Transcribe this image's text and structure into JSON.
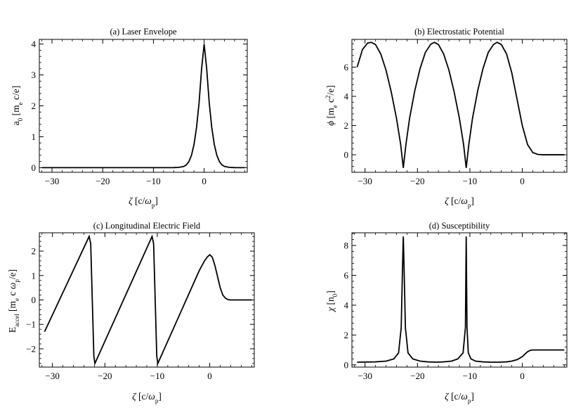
{
  "chart_data": [
    {
      "id": "a",
      "type": "line",
      "title": "(a) Laser Envelope",
      "xlabel": "ζ [c/ω_p]",
      "ylabel": "a_0 [m_e c/e]",
      "xlim": [
        -32.5,
        8.5
      ],
      "ylim": [
        -0.15,
        4.15
      ],
      "xticks": [
        -30,
        -20,
        -10,
        0
      ],
      "xtick_labels": [
        "−30",
        "−20",
        "−10",
        "0"
      ],
      "yticks": [
        0,
        1,
        2,
        3,
        4
      ],
      "ytick_labels": [
        "0",
        "1",
        "2",
        "3",
        "4"
      ],
      "grid": false,
      "series": [
        {
          "x": [
            -32,
            -10,
            -6,
            -5,
            -4,
            -3.5,
            -3,
            -2.5,
            -2,
            -1.5,
            -1,
            -0.5,
            0,
            0.5,
            1,
            1.5,
            2,
            2.5,
            3,
            3.5,
            4,
            5,
            6,
            8
          ],
          "y": [
            0,
            0,
            0.002,
            0.01,
            0.04,
            0.09,
            0.2,
            0.4,
            0.75,
            1.3,
            2.1,
            3.2,
            4.0,
            3.2,
            2.1,
            1.3,
            0.75,
            0.4,
            0.2,
            0.09,
            0.04,
            0.01,
            0.002,
            0
          ]
        }
      ]
    },
    {
      "id": "b",
      "type": "line",
      "title": "(b) Electrostatic Potential",
      "xlabel": "ζ [c/ω_p]",
      "ylabel": "φ [m_e c^2/e]",
      "xlim": [
        -32.5,
        8.5
      ],
      "ylim": [
        -1.2,
        7.9
      ],
      "xticks": [
        -30,
        -20,
        -10,
        0
      ],
      "xtick_labels": [
        "−30",
        "−20",
        "−10",
        "0"
      ],
      "yticks": [
        0,
        2,
        4,
        6
      ],
      "ytick_labels": [
        "0",
        "2",
        "4",
        "6"
      ],
      "grid": false,
      "series": [
        {
          "x": [
            -31.5,
            -30.5,
            -29.5,
            -28.8,
            -28,
            -27,
            -26,
            -25,
            -24,
            -23.2,
            -22.7,
            -22.2,
            -21.5,
            -20.5,
            -19.5,
            -18.5,
            -17.5,
            -16.8,
            -16,
            -15,
            -14,
            -13,
            -12,
            -11.2,
            -10.7,
            -10.2,
            -9.5,
            -8.5,
            -7.5,
            -6.5,
            -5.5,
            -4.8,
            -4,
            -3,
            -2,
            -1,
            0,
            1,
            2,
            3,
            4,
            6,
            8
          ],
          "y": [
            6.0,
            7.2,
            7.65,
            7.7,
            7.55,
            6.9,
            5.8,
            4.3,
            2.5,
            0.7,
            -0.9,
            0.7,
            2.5,
            4.4,
            5.9,
            7.0,
            7.55,
            7.7,
            7.55,
            6.9,
            5.8,
            4.3,
            2.5,
            0.7,
            -0.9,
            0.7,
            2.5,
            4.4,
            5.9,
            7.0,
            7.55,
            7.7,
            7.55,
            6.9,
            5.6,
            3.8,
            2.0,
            0.7,
            0.15,
            0.02,
            0,
            0,
            0
          ]
        }
      ]
    },
    {
      "id": "c",
      "type": "line",
      "title": "(c) Longitudinal Electric Field",
      "xlabel": "ζ [c/ω_p]",
      "ylabel": "E_accel [m_e c ω_p/e]",
      "xlim": [
        -32.5,
        8.5
      ],
      "ylim": [
        -2.75,
        2.75
      ],
      "xticks": [
        -30,
        -20,
        -10,
        0
      ],
      "xtick_labels": [
        "−30",
        "−20",
        "−10",
        "0"
      ],
      "yticks": [
        -2,
        -1,
        0,
        1,
        2
      ],
      "ytick_labels": [
        "−2",
        "−1",
        "0",
        "1",
        "2"
      ],
      "grid": false,
      "series": [
        {
          "x": [
            -31.5,
            -23,
            -22.7,
            -22.4,
            -22.1,
            -21.9,
            -11,
            -10.7,
            -10.4,
            -10.1,
            -9.9,
            -2,
            -1,
            -0.5,
            0,
            0.5,
            1,
            1.5,
            2,
            2.5,
            3,
            3.5,
            4,
            6,
            8
          ],
          "y": [
            -1.3,
            2.6,
            2.3,
            0,
            -2.3,
            -2.6,
            2.6,
            2.3,
            0,
            -2.3,
            -2.6,
            1.2,
            1.6,
            1.75,
            1.85,
            1.75,
            1.4,
            0.95,
            0.5,
            0.2,
            0.07,
            0.01,
            0,
            0,
            0
          ]
        }
      ]
    },
    {
      "id": "d",
      "type": "line",
      "title": "(d) Susceptibility",
      "xlabel": "ζ [c/ω_p]",
      "ylabel": "χ [n_0]",
      "xlim": [
        -32.5,
        8.5
      ],
      "ylim": [
        -0.15,
        8.85
      ],
      "xticks": [
        -30,
        -20,
        -10,
        0
      ],
      "xtick_labels": [
        "−30",
        "−20",
        "−10",
        "0"
      ],
      "yticks": [
        0,
        2,
        4,
        6,
        8
      ],
      "ytick_labels": [
        "0",
        "2",
        "4",
        "6",
        "8"
      ],
      "grid": false,
      "series": [
        {
          "x": [
            -31.5,
            -28,
            -26,
            -24.5,
            -23.6,
            -23.1,
            -22.85,
            -22.7,
            -22.55,
            -22.3,
            -21.8,
            -20.9,
            -19.5,
            -18,
            -16.5,
            -15,
            -13.5,
            -12.3,
            -11.3,
            -10.85,
            -10.7,
            -10.55,
            -10.3,
            -9.8,
            -8.9,
            -7.5,
            -6,
            -4.5,
            -3,
            -2,
            -1,
            0,
            0.5,
            1,
            1.5,
            2,
            3,
            4,
            6,
            8
          ],
          "y": [
            0.18,
            0.2,
            0.25,
            0.4,
            0.8,
            2.5,
            6.5,
            8.6,
            6.5,
            2.5,
            0.8,
            0.4,
            0.25,
            0.2,
            0.18,
            0.2,
            0.25,
            0.4,
            0.8,
            2.5,
            8.6,
            2.5,
            0.8,
            0.4,
            0.25,
            0.2,
            0.18,
            0.18,
            0.2,
            0.25,
            0.35,
            0.55,
            0.72,
            0.88,
            0.97,
            1.0,
            1.0,
            1.0,
            1.0,
            1.0
          ]
        }
      ]
    }
  ]
}
